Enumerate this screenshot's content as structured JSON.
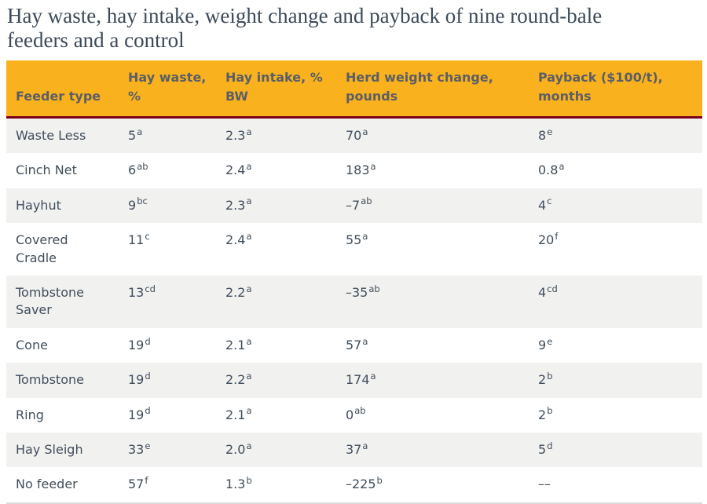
{
  "title": "Hay waste, hay intake, weight change and payback of nine round-bale\nfeeders and a control",
  "chart_data": {
    "type": "table",
    "title": "Hay waste, hay intake, weight change and payback of nine round-bale feeders and a control",
    "columns": [
      "Feeder type",
      "Hay waste,\n%",
      "Hay intake, %\nBW",
      "Herd weight change,\npounds",
      "Payback ($100/t),\nmonths"
    ],
    "rows": [
      [
        "Waste Less",
        "5^a",
        "2.3^a",
        "70^a",
        "8^e"
      ],
      [
        "Cinch Net",
        "6^ab",
        "2.4^a",
        "183^a",
        "0.8^a"
      ],
      [
        "Hayhut",
        "9^bc",
        "2.3^a",
        "–7^ab",
        "4^c"
      ],
      [
        "Covered\nCradle",
        "11^c",
        "2.4^a",
        "55^a",
        "20^f"
      ],
      [
        "Tombstone\nSaver",
        "13^cd",
        "2.2^a",
        "–35^ab",
        "4^cd"
      ],
      [
        "Cone",
        "19^d",
        "2.1^a",
        "57^a",
        "9^e"
      ],
      [
        "Tombstone",
        "19^d",
        "2.2^a",
        "174^a",
        "2^b"
      ],
      [
        "Ring",
        "19^d",
        "2.1^a",
        "0^ab",
        "2^b"
      ],
      [
        "Hay Sleigh",
        "33^e",
        "2.0^a",
        "37^a",
        "5^d"
      ],
      [
        "No feeder",
        "57^f",
        "1.3^b",
        "–225^b",
        "––"
      ]
    ]
  },
  "colors": {
    "header_bg": "#FAB11E",
    "header_rule": "#7A0019",
    "row_alt_bg": "#F1F1F0",
    "title_text": "#3C4A59",
    "body_text": "#414E5B",
    "header_text": "#5A5E66",
    "table_bottom_border": "#DADAD7",
    "page_bg": "#FFFFFF"
  }
}
